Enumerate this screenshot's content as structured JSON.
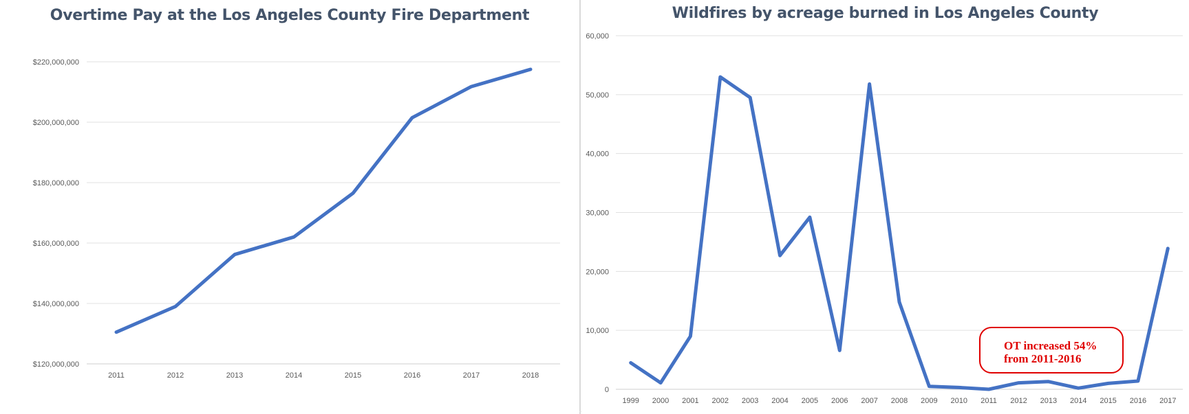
{
  "chart_data": [
    {
      "type": "line",
      "title": "Overtime Pay at the Los Angeles County Fire Department",
      "xlabel": "",
      "ylabel": "",
      "categories": [
        "2011",
        "2012",
        "2013",
        "2014",
        "2015",
        "2016",
        "2017",
        "2018"
      ],
      "series": [
        {
          "values": [
            130500000,
            139000000,
            156200000,
            162000000,
            176500000,
            201500000,
            211800000,
            217500000
          ]
        }
      ],
      "ylim": [
        120000000,
        220000000
      ],
      "yticks": [
        120000000,
        140000000,
        160000000,
        180000000,
        200000000,
        220000000
      ],
      "ytick_labels": [
        "$120,000,000",
        "$140,000,000",
        "$160,000,000",
        "$180,000,000",
        "$200,000,000",
        "$220,000,000"
      ],
      "grid": true,
      "legend": "none",
      "color": "#4472c4"
    },
    {
      "type": "line",
      "title": "Wildfires by acreage burned in Los Angeles County",
      "xlabel": "",
      "ylabel": "",
      "categories": [
        "1999",
        "2000",
        "2001",
        "2002",
        "2003",
        "2004",
        "2005",
        "2006",
        "2007",
        "2008",
        "2009",
        "2010",
        "2011",
        "2012",
        "2013",
        "2014",
        "2015",
        "2016",
        "2017"
      ],
      "series": [
        {
          "values": [
            4500,
            1100,
            9000,
            53000,
            49500,
            22700,
            29200,
            6600,
            51800,
            14800,
            500,
            300,
            0,
            1100,
            1300,
            200,
            1000,
            1400,
            23900
          ]
        }
      ],
      "ylim": [
        0,
        60000
      ],
      "yticks": [
        0,
        10000,
        20000,
        30000,
        40000,
        50000,
        60000
      ],
      "ytick_labels": [
        "0",
        "10,000",
        "20,000",
        "30,000",
        "40,000",
        "50,000",
        "60,000"
      ],
      "grid": true,
      "legend": "none",
      "color": "#4472c4",
      "annotation": {
        "line1": "OT increased 54%",
        "line2": "from 2011-2016",
        "color": "#e00000"
      }
    }
  ]
}
